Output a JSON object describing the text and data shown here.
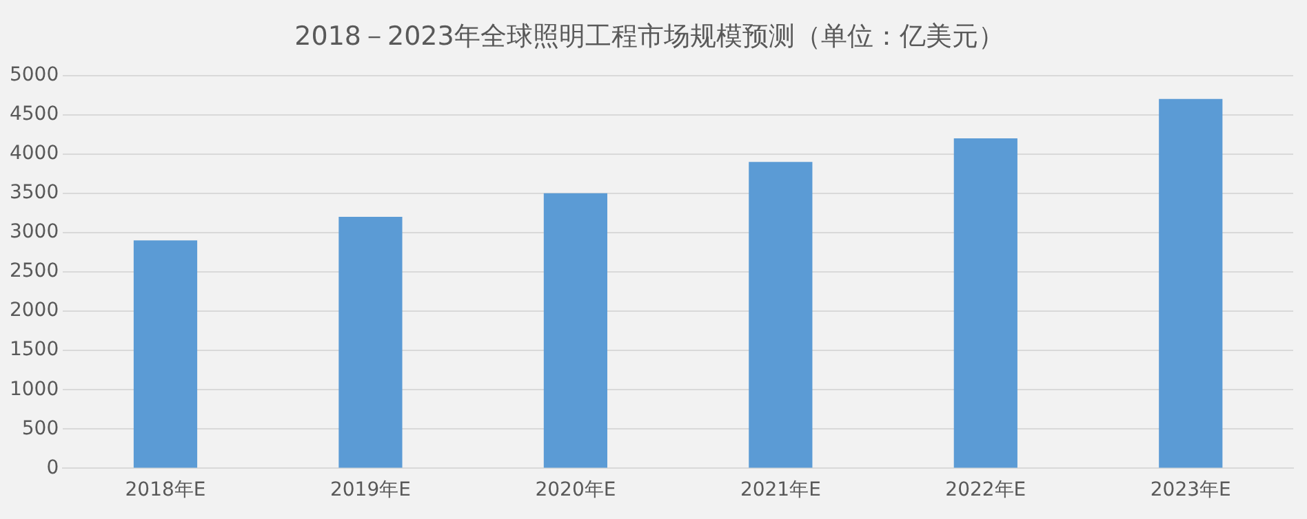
{
  "chart_data": {
    "type": "bar",
    "title": "2018－2023年全球照明工程市场规模预测（单位：亿美元）",
    "categories": [
      "2018年E",
      "2019年E",
      "2020年E",
      "2021年E",
      "2022年E",
      "2023年E"
    ],
    "values": [
      2900,
      3200,
      3500,
      3900,
      4200,
      4700
    ],
    "color": "#5b9bd5",
    "ylim": [
      0,
      5000
    ],
    "yticks": [
      0,
      500,
      1000,
      1500,
      2000,
      2500,
      3000,
      3500,
      4000,
      4500,
      5000
    ],
    "grid": "y",
    "legend": false
  }
}
